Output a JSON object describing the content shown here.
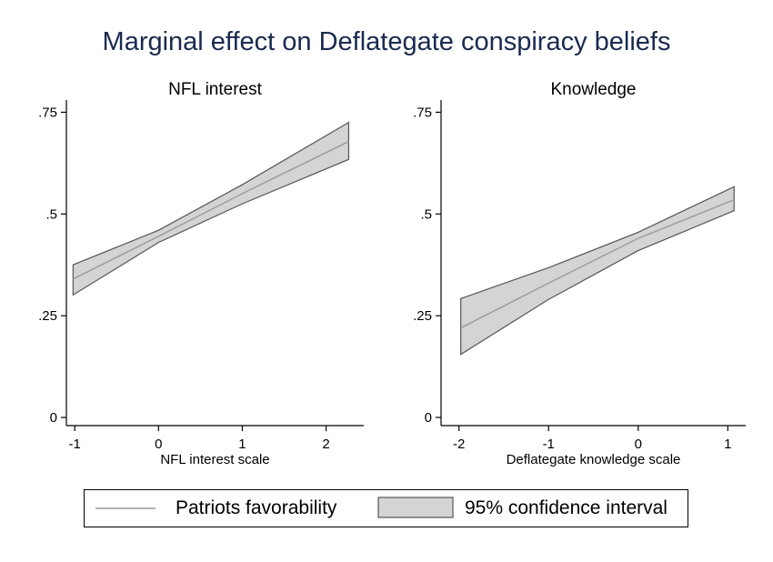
{
  "title": "Marginal effect on Deflategate conspiracy beliefs",
  "legend": {
    "line_label": "Patriots favorability",
    "band_label": "95% confidence interval"
  },
  "colors": {
    "band_fill": "#d4d4d4",
    "band_edge": "#555555",
    "line": "#9a9a9a",
    "title": "#1a2a4f"
  },
  "chart_data": [
    {
      "type": "line",
      "subtitle": "NFL interest",
      "xlabel": "NFL interest scale",
      "ylabel": "",
      "xlim": [
        -1.1,
        2.45
      ],
      "ylim": [
        -0.02,
        0.78
      ],
      "xticks": [
        -1,
        0,
        1,
        2
      ],
      "xtick_labels": [
        "-1",
        "0",
        "1",
        "2"
      ],
      "yticks": [
        0,
        0.25,
        0.5,
        0.75
      ],
      "ytick_labels": [
        "0",
        ".25",
        ".5",
        ".75"
      ],
      "grid": false,
      "series": [
        {
          "name": "Patriots favorability",
          "x": [
            -1.02,
            0,
            1,
            2.27
          ],
          "y": [
            0.34,
            0.445,
            0.55,
            0.678
          ]
        },
        {
          "name": "95% confidence interval",
          "x": [
            -1.02,
            0,
            1,
            2.27
          ],
          "lower": [
            0.301,
            0.43,
            0.525,
            0.634
          ],
          "upper": [
            0.375,
            0.46,
            0.572,
            0.725
          ]
        }
      ]
    },
    {
      "type": "line",
      "subtitle": "Knowledge",
      "xlabel": "Deflategate knowledge scale",
      "ylabel": "",
      "xlim": [
        -2.2,
        1.2
      ],
      "ylim": [
        -0.02,
        0.78
      ],
      "xticks": [
        -2,
        -1,
        0,
        1
      ],
      "xtick_labels": [
        "-2",
        "-1",
        "0",
        "1"
      ],
      "yticks": [
        0,
        0.25,
        0.5,
        0.75
      ],
      "ytick_labels": [
        "0",
        ".25",
        ".5",
        ".75"
      ],
      "grid": false,
      "series": [
        {
          "name": "Patriots favorability",
          "x": [
            -1.98,
            -1,
            0,
            1.07
          ],
          "y": [
            0.22,
            0.33,
            0.44,
            0.535
          ]
        },
        {
          "name": "95% confidence interval",
          "x": [
            -1.98,
            -1,
            0,
            1.07
          ],
          "lower": [
            0.155,
            0.29,
            0.41,
            0.508
          ],
          "upper": [
            0.292,
            0.368,
            0.455,
            0.567
          ]
        }
      ]
    }
  ]
}
